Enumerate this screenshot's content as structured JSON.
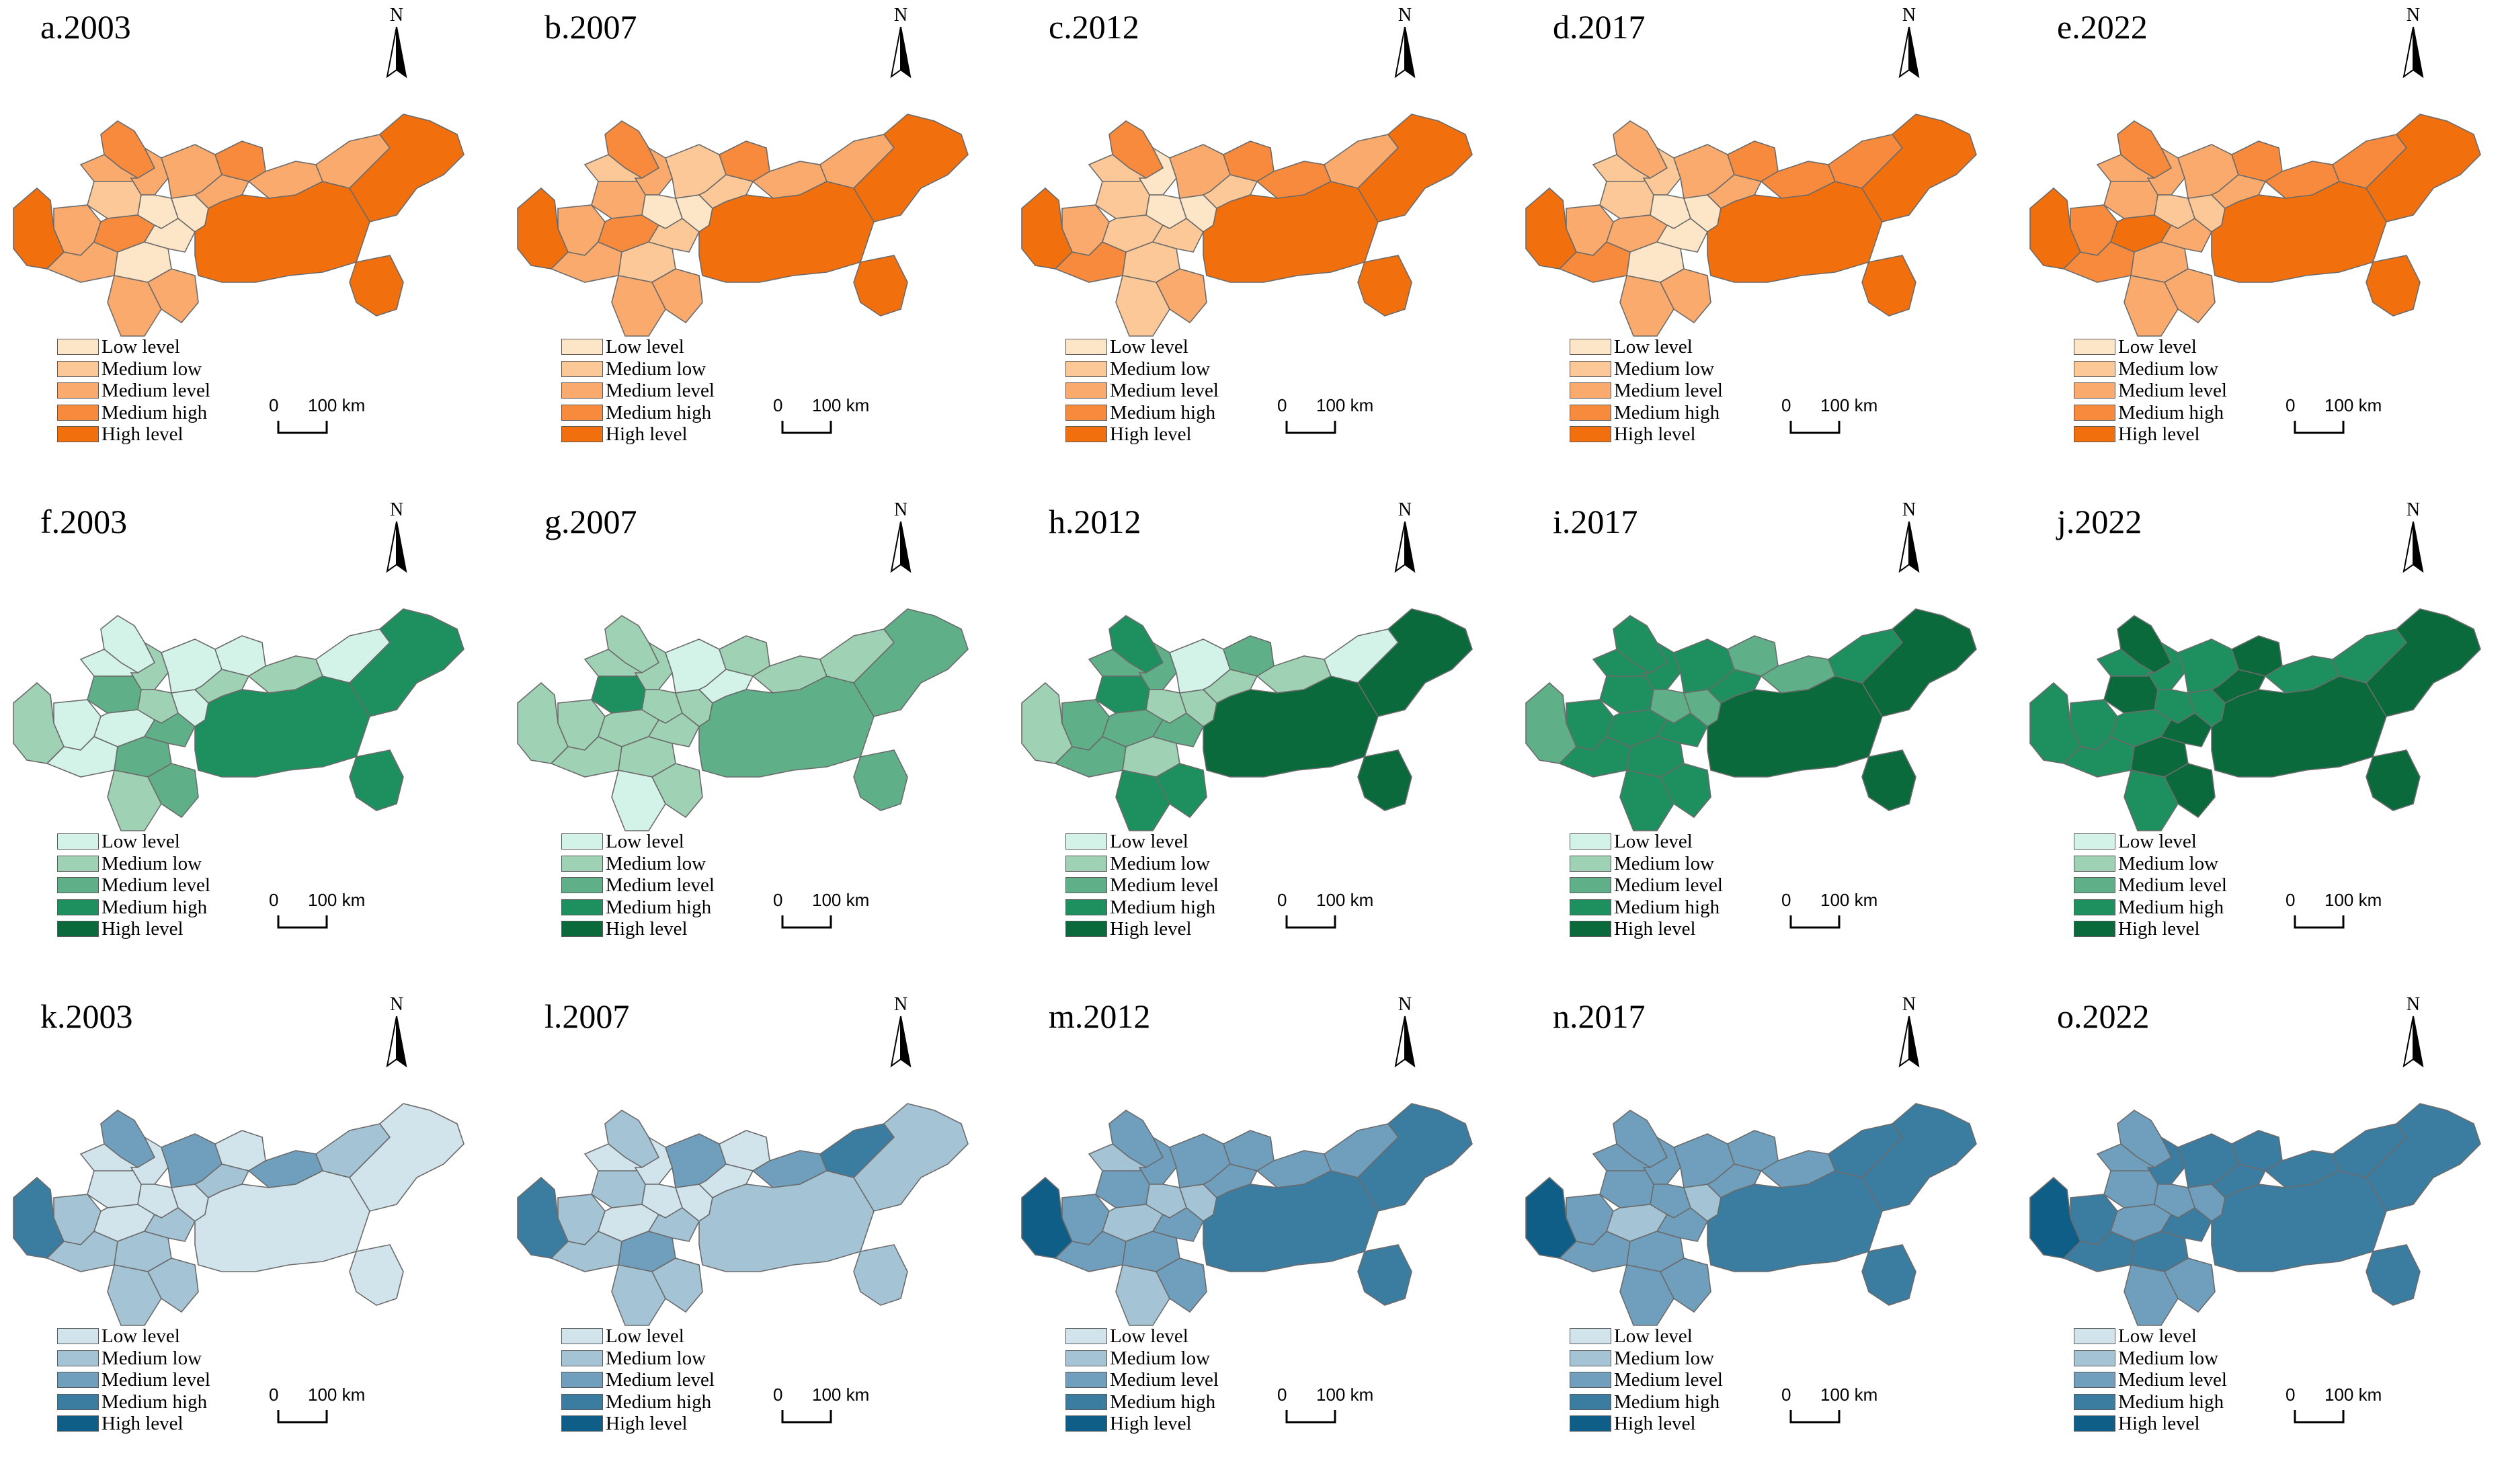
{
  "legend_labels": [
    "Low level",
    "Medium low",
    "Medium level",
    "Medium high",
    "High level"
  ],
  "scale_bar": {
    "zero": "0",
    "distance": "100",
    "unit": "km"
  },
  "north_label": "N",
  "palettes": {
    "orange": [
      "#fde5c7",
      "#fcc898",
      "#faaa6c",
      "#f78a3c",
      "#f26f0d"
    ],
    "green": [
      "#d3f2e8",
      "#9fd1b4",
      "#5fb088",
      "#1e8f5e",
      "#0a6a3c"
    ],
    "blue": [
      "#d1e4ec",
      "#a4c4d6",
      "#6f9fbd",
      "#3b7ca1",
      "#0f5e88"
    ]
  },
  "panels": [
    {
      "title": "a.2003",
      "palette": "orange",
      "levels": [
        4,
        2,
        2,
        1,
        3,
        2,
        2,
        3,
        0,
        0,
        0,
        2,
        2,
        0,
        2,
        3,
        2,
        2,
        4,
        4,
        2,
        4
      ]
    },
    {
      "title": "b.2007",
      "palette": "orange",
      "levels": [
        4,
        2,
        2,
        2,
        3,
        1,
        2,
        3,
        1,
        0,
        1,
        2,
        2,
        0,
        1,
        3,
        1,
        2,
        4,
        4,
        2,
        4
      ]
    },
    {
      "title": "c.2012",
      "palette": "orange",
      "levels": [
        4,
        2,
        3,
        1,
        3,
        1,
        0,
        1,
        1,
        0,
        1,
        1,
        2,
        0,
        2,
        3,
        1,
        3,
        4,
        4,
        2,
        4
      ]
    },
    {
      "title": "d.2017",
      "palette": "orange",
      "levels": [
        4,
        2,
        3,
        1,
        2,
        1,
        1,
        2,
        0,
        0,
        0,
        2,
        2,
        0,
        2,
        3,
        2,
        3,
        4,
        4,
        3,
        4
      ]
    },
    {
      "title": "e.2022",
      "palette": "orange",
      "levels": [
        4,
        3,
        3,
        2,
        3,
        2,
        2,
        4,
        2,
        1,
        2,
        2,
        2,
        1,
        2,
        3,
        2,
        3,
        4,
        4,
        3,
        4
      ]
    },
    {
      "title": "f.2003",
      "palette": "green",
      "levels": [
        1,
        0,
        0,
        2,
        0,
        0,
        1,
        0,
        2,
        1,
        2,
        1,
        2,
        0,
        0,
        0,
        1,
        1,
        3,
        3,
        0,
        3
      ]
    },
    {
      "title": "g.2007",
      "palette": "green",
      "levels": [
        1,
        1,
        1,
        3,
        1,
        1,
        1,
        1,
        1,
        1,
        1,
        0,
        1,
        1,
        0,
        1,
        0,
        1,
        2,
        2,
        1,
        2
      ]
    },
    {
      "title": "h.2012",
      "palette": "green",
      "levels": [
        1,
        2,
        2,
        3,
        3,
        2,
        2,
        2,
        1,
        1,
        2,
        3,
        3,
        1,
        0,
        2,
        1,
        1,
        4,
        4,
        0,
        4
      ]
    },
    {
      "title": "i.2017",
      "palette": "green",
      "levels": [
        2,
        3,
        3,
        3,
        3,
        3,
        3,
        3,
        3,
        2,
        3,
        3,
        3,
        2,
        3,
        2,
        3,
        2,
        4,
        4,
        3,
        4
      ]
    },
    {
      "title": "j.2022",
      "palette": "green",
      "levels": [
        3,
        3,
        3,
        4,
        4,
        3,
        3,
        3,
        4,
        3,
        4,
        3,
        4,
        3,
        3,
        4,
        4,
        3,
        4,
        4,
        3,
        4
      ]
    },
    {
      "title": "k.2003",
      "palette": "blue",
      "levels": [
        3,
        1,
        1,
        0,
        2,
        0,
        0,
        0,
        1,
        0,
        1,
        1,
        1,
        0,
        2,
        0,
        1,
        2,
        0,
        0,
        1,
        0
      ]
    },
    {
      "title": "l.2007",
      "palette": "blue",
      "levels": [
        3,
        1,
        1,
        1,
        1,
        0,
        0,
        0,
        2,
        0,
        1,
        1,
        1,
        0,
        2,
        0,
        0,
        2,
        1,
        1,
        3,
        1
      ]
    },
    {
      "title": "m.2012",
      "palette": "blue",
      "levels": [
        4,
        2,
        2,
        2,
        2,
        1,
        2,
        1,
        2,
        1,
        2,
        1,
        2,
        1,
        2,
        2,
        2,
        2,
        3,
        3,
        2,
        3
      ]
    },
    {
      "title": "n.2017",
      "palette": "blue",
      "levels": [
        4,
        2,
        2,
        2,
        2,
        2,
        2,
        1,
        2,
        2,
        2,
        2,
        2,
        1,
        2,
        2,
        2,
        2,
        3,
        3,
        3,
        3
      ]
    },
    {
      "title": "o.2022",
      "palette": "blue",
      "levels": [
        4,
        3,
        3,
        2,
        2,
        2,
        3,
        2,
        3,
        2,
        3,
        2,
        2,
        2,
        3,
        3,
        3,
        3,
        3,
        3,
        3,
        3
      ]
    }
  ]
}
